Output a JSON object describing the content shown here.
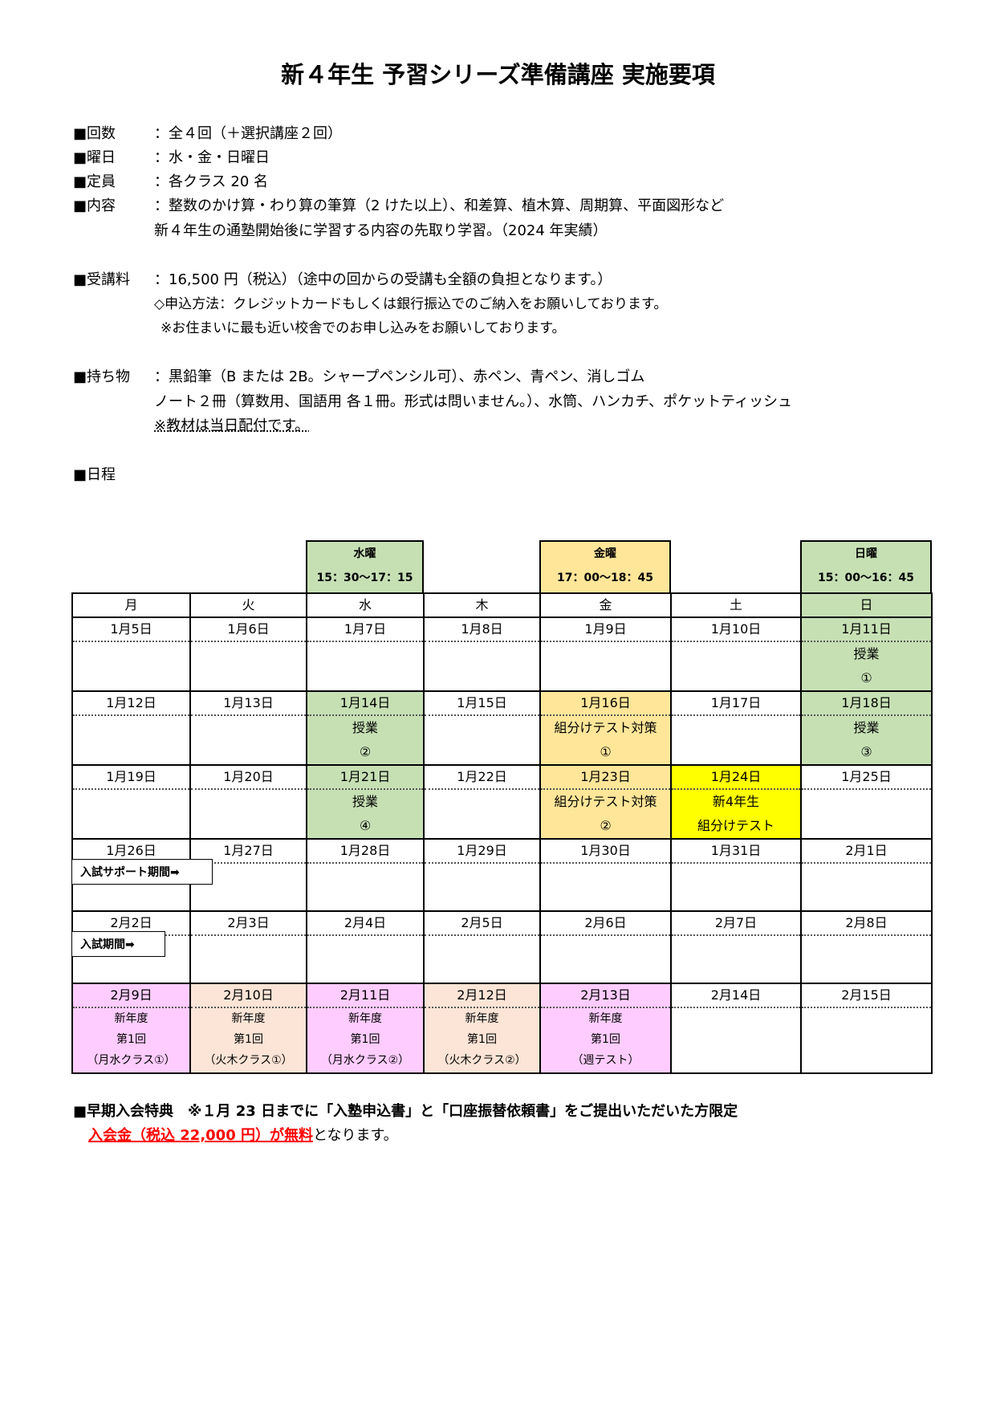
{
  "title": "新４年生 予習シリーズ準備講座 実施要項",
  "info": [
    {
      "label": "■回数",
      "value": "：全４回（＋選択講座２回）"
    },
    {
      "label": "■曜日",
      "value": "：水・金・日曜日"
    },
    {
      "label": "■定員",
      "value": "：各クラス 20 名"
    },
    {
      "label": "■内容",
      "value": "：整数のかけ算・わり算の筆算（2 けた以上）、和差算、植木算、周期算、平面図形など"
    }
  ],
  "content_line2": "新４年生の通塾開始後に学習する内容の先取り学習。（2024 年実績）",
  "fee": {
    "label": "■受講料",
    "value": "：16,500 円（税込）（途中の回からの受講も全額の負担となります。）",
    "line2": "◇申込方法：クレジットカードもしくは銀行振込でのご納入をお願いしております。",
    "line3": "※お住まいに最も近い校舎でのお申し込みをお願いしております。"
  },
  "items": {
    "label": "■持ち物",
    "value": "：黒鉛筆（B または 2B。シャープペンシル可）、赤ペン、青ペン、消しゴム",
    "line2": "ノート２冊（算数用、国語用 各１冊。形式は問いません。）、水筒、ハンカチ、ポケットティッシュ",
    "line3": "※教材は当日配付です。"
  },
  "schedule_label": "■日程",
  "headers": {
    "wed": {
      "day": "水曜",
      "time": "15：30～17：15"
    },
    "fri": {
      "day": "金曜",
      "time": "17：00～18：45"
    },
    "sun": {
      "day": "日曜",
      "time": "15：00～16：45"
    }
  },
  "days": [
    "月",
    "火",
    "水",
    "木",
    "金",
    "土",
    "日"
  ],
  "weeks": [
    {
      "dates": [
        "1月5日",
        "1月6日",
        "1月7日",
        "1月8日",
        "1月9日",
        "1月10日",
        "1月11日"
      ],
      "sun": [
        "授業",
        "①"
      ]
    },
    {
      "dates": [
        "1月12日",
        "1月13日",
        "1月14日",
        "1月15日",
        "1月16日",
        "1月17日",
        "1月18日"
      ],
      "wed": [
        "授業",
        "②"
      ],
      "fri": [
        "組分けテスト対策",
        "①"
      ],
      "sun": [
        "授業",
        "③"
      ]
    },
    {
      "dates": [
        "1月19日",
        "1月20日",
        "1月21日",
        "1月22日",
        "1月23日",
        "1月24日",
        "1月25日"
      ],
      "wed": [
        "授業",
        "④"
      ],
      "fri": [
        "組分けテスト対策",
        "②"
      ],
      "sat": [
        "新4年生",
        "組分けテスト"
      ]
    },
    {
      "dates": [
        "1月26日",
        "1月27日",
        "1月28日",
        "1月29日",
        "1月30日",
        "1月31日",
        "2月1日"
      ]
    },
    {
      "dates": [
        "2月2日",
        "2月3日",
        "2月4日",
        "2月5日",
        "2月6日",
        "2月7日",
        "2月8日"
      ]
    },
    {
      "dates": [
        "2月9日",
        "2月10日",
        "2月11日",
        "2月12日",
        "2月13日",
        "2月14日",
        "2月15日"
      ],
      "new": [
        [
          "新年度",
          "第1回",
          "（月水クラス①）"
        ],
        [
          "新年度",
          "第1回",
          "（火木クラス①）"
        ],
        [
          "新年度",
          "第1回",
          "（月水クラス②）"
        ],
        [
          "新年度",
          "第1回",
          "（火木クラス②）"
        ],
        [
          "新年度",
          "第1回",
          "（週テスト）"
        ]
      ]
    }
  ],
  "callouts": {
    "support": "入試サポート期間➡",
    "exam": "入試期間➡"
  },
  "benefit": {
    "line1": "■早期入会特典　※１月 23 日までに「入塾申込書」と「口座振替依頼書」をご提出いただいた方限定",
    "red": "入会金（税込 22,000 円）が無料",
    "rest": "となります。"
  },
  "colors": {
    "green": "#c6e0b4",
    "orange": "#ffe699",
    "yellow": "#ffff00",
    "pink": "#ffccff",
    "peach": "#fce4d6",
    "red": "#ff0000"
  }
}
